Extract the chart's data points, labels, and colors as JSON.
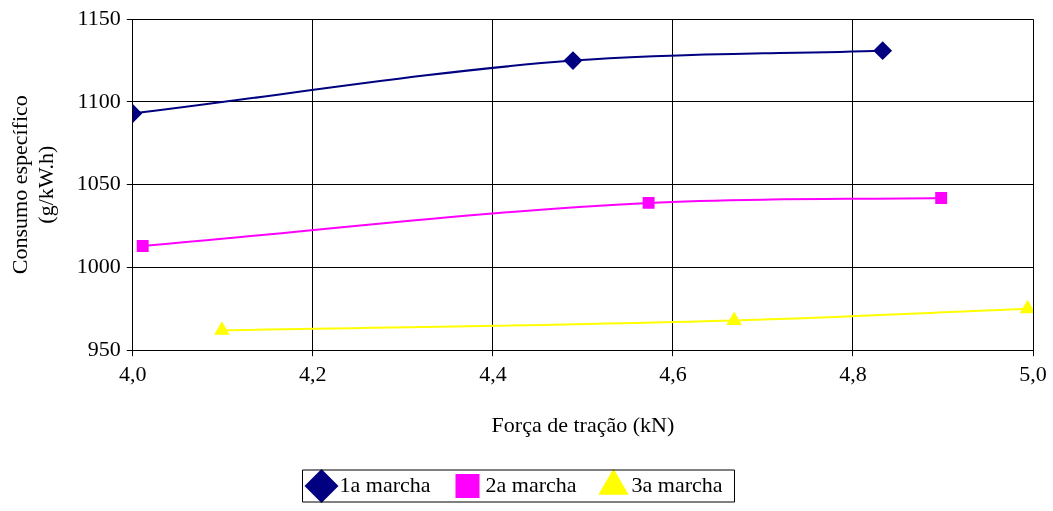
{
  "chart_data": {
    "type": "line",
    "xlabel": "Força de tração (kN)",
    "ylabel": "Consumo específico (g/kW.h)",
    "xlim": [
      4,
      5
    ],
    "xticks": [
      {
        "value": 4,
        "label": "4,0"
      },
      {
        "value": 4.2,
        "label": "4,2"
      },
      {
        "value": 4.4,
        "label": "4,4"
      },
      {
        "value": 4.6,
        "label": "4,6"
      },
      {
        "value": 4.8,
        "label": "4,8"
      },
      {
        "value": 5,
        "label": "5,0"
      }
    ],
    "ylim": [
      950,
      1150
    ],
    "yticks": [
      950,
      1000,
      1050,
      1100,
      1150
    ],
    "grid": true,
    "legend": "bottom",
    "line_style": "solid",
    "series": [
      {
        "name": "1a marcha",
        "color": "#000080",
        "marker": "diamond",
        "x": [
          4.0,
          4.489,
          4.833
        ],
        "values": [
          1093,
          1125,
          1131
        ]
      },
      {
        "name": "2a marcha",
        "color": "#ff00ff",
        "marker": "square",
        "x": [
          4.011,
          4.573,
          4.898
        ],
        "values": [
          1013,
          1039,
          1042
        ]
      },
      {
        "name": "3a marcha",
        "color": "#ffff00",
        "marker": "triangle",
        "x": [
          4.099,
          4.668,
          4.994
        ],
        "values": [
          962,
          968,
          975
        ]
      }
    ]
  }
}
